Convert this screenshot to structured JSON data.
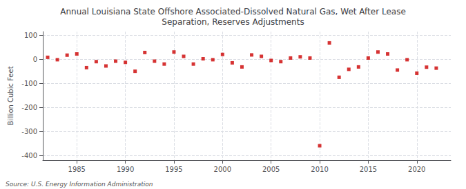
{
  "chart_data": {
    "type": "scatter",
    "title": "Annual Louisiana State Offshore Associated-Dissolved Natural Gas, Wet After Lease\nSeparation, Reserves Adjustments",
    "ylabel": "Billion Cubic Feet",
    "annotation": "Source: U.S. Energy Information Administration",
    "x": [
      1982,
      1983,
      1984,
      1985,
      1986,
      1987,
      1988,
      1989,
      1990,
      1991,
      1992,
      1993,
      1994,
      1995,
      1996,
      1997,
      1998,
      1999,
      2000,
      2001,
      2002,
      2003,
      2004,
      2005,
      2006,
      2007,
      2008,
      2009,
      2010,
      2011,
      2012,
      2013,
      2014,
      2015,
      2016,
      2017,
      2018,
      2019,
      2020,
      2021,
      2022
    ],
    "values": [
      8,
      -2,
      17,
      22,
      -35,
      -10,
      -28,
      -8,
      -13,
      -50,
      28,
      -8,
      -20,
      30,
      12,
      -20,
      2,
      -2,
      20,
      -15,
      -32,
      18,
      12,
      -5,
      -10,
      5,
      10,
      5,
      -360,
      68,
      -75,
      -42,
      -32,
      5,
      30,
      22,
      -45,
      -2,
      -58,
      -33,
      -37
    ],
    "color": "#cc0000",
    "marker": "square",
    "xlim": [
      1981.5,
      2023.5
    ],
    "ylim": [
      -420,
      115
    ],
    "xticks": [
      1985,
      1990,
      1995,
      2000,
      2005,
      2010,
      2015,
      2020
    ],
    "yticks": [
      100,
      0,
      -100,
      -200,
      -300,
      -400
    ],
    "grid": true
  }
}
